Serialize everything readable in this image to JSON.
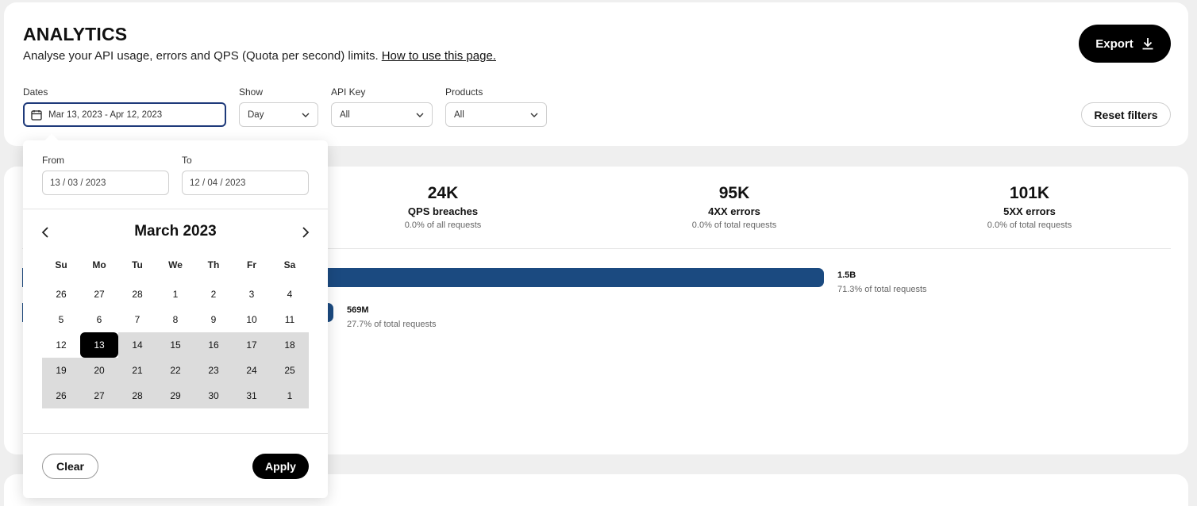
{
  "header": {
    "title": "ANALYTICS",
    "subtitle": "Analyse your API usage, errors and QPS (Quota per second) limits.",
    "help_link": "How to use this page.",
    "export_label": "Export",
    "reset_label": "Reset filters"
  },
  "filters": {
    "dates": {
      "label": "Dates",
      "value": "Mar 13, 2023 - Apr 12, 2023",
      "icon": "calendar-icon"
    },
    "show": {
      "label": "Show",
      "value": "Day"
    },
    "api_key": {
      "label": "API Key",
      "value": "All"
    },
    "products": {
      "label": "Products",
      "value": "All"
    }
  },
  "stats": [
    {
      "value": "24K",
      "label": "QPS breaches",
      "sub": "0.0% of all requests"
    },
    {
      "value": "95K",
      "label": "4XX errors",
      "sub": "0.0% of total requests"
    },
    {
      "value": "101K",
      "label": "5XX errors",
      "sub": "0.0% of total requests"
    }
  ],
  "bars": [
    {
      "value": "1.5B",
      "sub": "71.3% of total requests",
      "share": 0.713
    },
    {
      "value": "569M",
      "sub": "27.7% of total requests",
      "share": 0.277
    }
  ],
  "datepicker": {
    "from_label": "From",
    "from_value": "13 / 03 / 2023",
    "to_label": "To",
    "to_value": "12 / 04 / 2023",
    "month": "March 2023",
    "weekdays": [
      "Su",
      "Mo",
      "Tu",
      "We",
      "Th",
      "Fr",
      "Sa"
    ],
    "weeks": [
      [
        "26",
        "27",
        "28",
        "1",
        "2",
        "3",
        "4"
      ],
      [
        "5",
        "6",
        "7",
        "8",
        "9",
        "10",
        "11"
      ],
      [
        "12",
        "13",
        "14",
        "15",
        "16",
        "17",
        "18"
      ],
      [
        "19",
        "20",
        "21",
        "22",
        "23",
        "24",
        "25"
      ],
      [
        "26",
        "27",
        "28",
        "29",
        "30",
        "31",
        "1"
      ]
    ],
    "selected": "13",
    "clear_label": "Clear",
    "apply_label": "Apply"
  },
  "colors": {
    "bar": "#1b4a80",
    "accent_border": "#1e3a7a",
    "range_fill": "#dcdcdc"
  }
}
